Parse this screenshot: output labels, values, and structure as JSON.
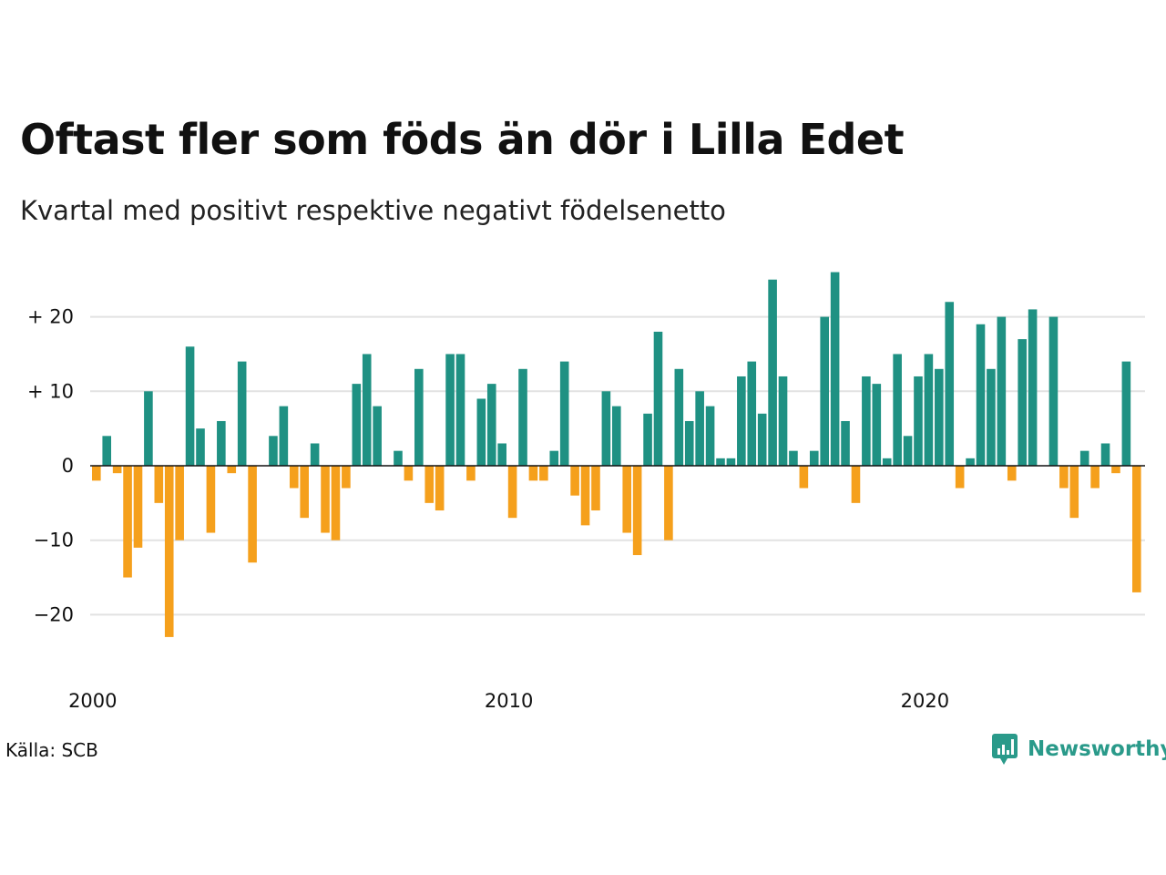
{
  "title": "Oftast fler som föds än dör i Lilla Edet",
  "subtitle": "Kvartal med positivt respektive negativt födelsenetto",
  "source": "Källa: SCB",
  "brand": {
    "name": "Newsworthy",
    "icon": "newsworthy-logo-icon",
    "color": "#2a9a8a"
  },
  "colors": {
    "positive": "#1f9183",
    "negative": "#f5a01c",
    "grid": "#e2e2e2",
    "zero": "#111111"
  },
  "chart_data": {
    "type": "bar",
    "x_start": "2000 Q1",
    "x_ticks": [
      "2000",
      "2010",
      "2020"
    ],
    "y_ticks": [
      "−20",
      "−10",
      "0",
      "+ 10",
      "+ 20"
    ],
    "y_tick_values": [
      -20,
      -10,
      0,
      10,
      20
    ],
    "ylim": [
      -27,
      29
    ],
    "grid": true,
    "values": [
      -2,
      4,
      -1,
      -15,
      -11,
      10,
      -5,
      -23,
      -10,
      16,
      5,
      -9,
      6,
      -1,
      14,
      -13,
      0,
      4,
      8,
      -3,
      -7,
      3,
      -9,
      -10,
      -3,
      11,
      15,
      8,
      0,
      2,
      -2,
      13,
      -5,
      -6,
      15,
      15,
      -2,
      9,
      11,
      3,
      -7,
      13,
      -2,
      -2,
      2,
      14,
      -4,
      -8,
      -6,
      10,
      8,
      -9,
      -12,
      7,
      18,
      -10,
      13,
      6,
      10,
      8,
      1,
      1,
      12,
      14,
      7,
      25,
      12,
      2,
      -3,
      2,
      20,
      26,
      6,
      -5,
      12,
      11,
      1,
      15,
      4,
      12,
      15,
      13,
      22,
      -3,
      1,
      19,
      13,
      20,
      -2,
      17,
      21,
      0,
      20,
      -3,
      -7,
      2,
      -3,
      3,
      -1,
      14,
      -17
    ]
  }
}
